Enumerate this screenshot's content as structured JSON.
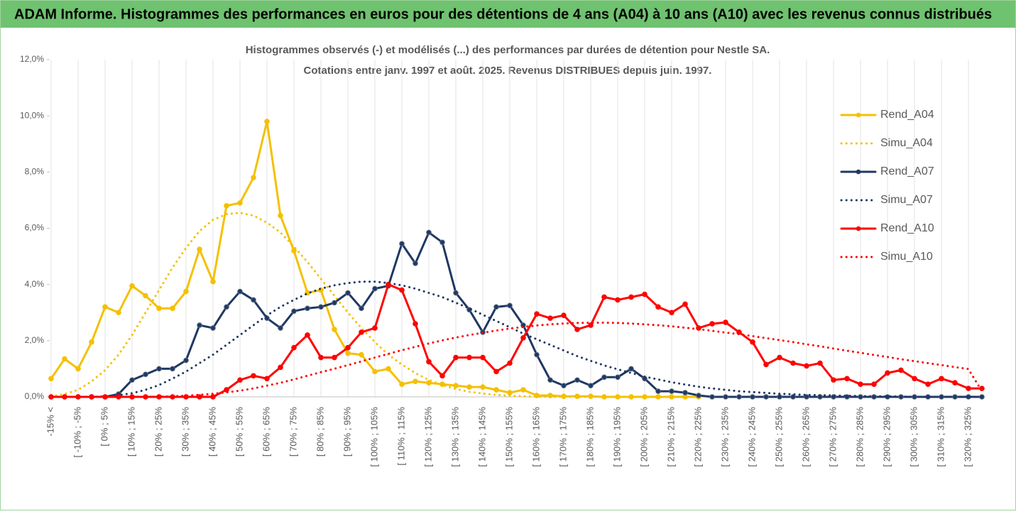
{
  "page_title": "ADAM Informe. Histogrammes des performances en euros pour des détentions de 4 ans (A04) à 10 ans (A10) avec les revenus connus distribués",
  "chart_data": {
    "type": "line",
    "title": "Histogrammes observés (-) et modélisés (...) des performances par durées de détention pour Nestle SA.",
    "subtitle": "Cotations entre janv. 1997 et août. 2025. Revenus DISTRIBUES depuis juin. 1997.",
    "categories": [
      "-15% <",
      null,
      "[ -10% ; -5%",
      null,
      "[ 0% ; 5%",
      null,
      "[ 10% ; 15%",
      null,
      "[ 20% ; 25%",
      null,
      "[ 30% ; 35%",
      null,
      "[ 40% ; 45%",
      null,
      "[ 50% ; 55%",
      null,
      "[ 60% ; 65%",
      null,
      "[ 70% ; 75%",
      null,
      "[ 80% ; 85%",
      null,
      "[ 90% ; 95%",
      null,
      "[ 100% ; 105%",
      null,
      "[ 110% ; 115%",
      null,
      "[ 120% ; 125%",
      null,
      "[ 130% ; 135%",
      null,
      "[ 140% ; 145%",
      null,
      "[ 150% ; 155%",
      null,
      "[ 160% ; 165%",
      null,
      "[ 170% ; 175%",
      null,
      "[ 180% ; 185%",
      null,
      "[ 190% ; 195%",
      null,
      "[ 200% ; 205%",
      null,
      "[ 210% ; 215%",
      null,
      "[ 220% ; 225%",
      null,
      "[ 230% ; 235%",
      null,
      "[ 240% ; 245%",
      null,
      "[ 250% ; 255%",
      null,
      "[ 260% ; 265%",
      null,
      "[ 270% ; 275%",
      null,
      "[ 280% ; 285%",
      null,
      "[ 290% ; 295%",
      null,
      "[ 300% ; 305%",
      null,
      "[ 310% ; 315%",
      null,
      "[ 320% ; 325%",
      null
    ],
    "series": [
      {
        "name": "Rend_A04",
        "color": "#f5c000",
        "style": "solid",
        "values": [
          0.65,
          1.35,
          1.0,
          1.95,
          3.2,
          3.0,
          3.95,
          3.6,
          3.15,
          3.15,
          3.75,
          5.25,
          4.1,
          6.8,
          6.9,
          7.8,
          9.8,
          6.45,
          5.2,
          3.7,
          3.8,
          2.4,
          1.55,
          1.5,
          0.9,
          1.0,
          0.45,
          0.55,
          0.5,
          0.45,
          0.4,
          0.35,
          0.35,
          0.25,
          0.15,
          0.25,
          0.05,
          0.05,
          0.02,
          0.02,
          0.02,
          0,
          0,
          0,
          0,
          0,
          0,
          0,
          0,
          null,
          null,
          null,
          null,
          null,
          null,
          null,
          null,
          null,
          null,
          null,
          null,
          null,
          null,
          null,
          null,
          null,
          null,
          null,
          null,
          null
        ]
      },
      {
        "name": "Simu_A04",
        "color": "#f5c000",
        "style": "dotted",
        "values": [
          0.02,
          0.1,
          0.25,
          0.55,
          0.95,
          1.5,
          2.2,
          3.0,
          3.8,
          4.6,
          5.3,
          5.9,
          6.3,
          6.5,
          6.55,
          6.45,
          6.2,
          5.85,
          5.35,
          4.8,
          4.2,
          3.6,
          3.0,
          2.45,
          1.95,
          1.5,
          1.15,
          0.85,
          0.6,
          0.42,
          0.28,
          0.18,
          0.12,
          0.07,
          0.04,
          0.02,
          0.01,
          0,
          0,
          0,
          0,
          0,
          0,
          0,
          0,
          0,
          0,
          0,
          0,
          null,
          null,
          null,
          null,
          null,
          null,
          null,
          null,
          null,
          null,
          null,
          null,
          null,
          null,
          null,
          null,
          null,
          null,
          null,
          null,
          null
        ]
      },
      {
        "name": "Rend_A07",
        "color": "#1f3864",
        "style": "solid",
        "values": [
          0,
          0,
          0,
          0,
          0,
          0.1,
          0.6,
          0.8,
          1.0,
          1.0,
          1.3,
          2.55,
          2.45,
          3.2,
          3.75,
          3.45,
          2.8,
          2.45,
          3.05,
          3.15,
          3.2,
          3.35,
          3.7,
          3.15,
          3.85,
          3.95,
          5.45,
          4.75,
          5.85,
          5.5,
          3.7,
          3.1,
          2.3,
          3.2,
          3.25,
          2.55,
          1.5,
          0.6,
          0.4,
          0.6,
          0.4,
          0.7,
          0.7,
          1.0,
          0.65,
          0.2,
          0.2,
          0.15,
          0.05,
          0,
          0,
          0,
          0,
          0,
          0,
          0,
          0,
          0,
          0,
          0,
          0,
          0,
          0,
          0,
          0,
          0,
          0,
          0,
          0,
          0
        ]
      },
      {
        "name": "Simu_A07",
        "color": "#1f3864",
        "style": "dotted",
        "values": [
          0,
          0,
          0,
          0,
          0.02,
          0.06,
          0.13,
          0.25,
          0.42,
          0.65,
          0.9,
          1.2,
          1.5,
          1.85,
          2.2,
          2.55,
          2.9,
          3.2,
          3.45,
          3.68,
          3.85,
          3.97,
          4.05,
          4.1,
          4.1,
          4.05,
          3.97,
          3.85,
          3.7,
          3.55,
          3.35,
          3.15,
          2.92,
          2.7,
          2.48,
          2.25,
          2.05,
          1.85,
          1.65,
          1.45,
          1.28,
          1.12,
          0.98,
          0.85,
          0.72,
          0.62,
          0.52,
          0.44,
          0.36,
          0.3,
          0.25,
          0.2,
          0.17,
          0.14,
          0.11,
          0.09,
          0.07,
          0.06,
          0.05,
          0.04,
          0.03,
          0.02,
          0.02,
          0.01,
          0,
          0,
          0,
          0,
          0,
          0
        ]
      },
      {
        "name": "Rend_A10",
        "color": "#ff0000",
        "style": "solid",
        "values": [
          0,
          0,
          0,
          0,
          0,
          0,
          0,
          0,
          0,
          0,
          0,
          0,
          0,
          0.25,
          0.6,
          0.75,
          0.65,
          1.05,
          1.75,
          2.2,
          1.4,
          1.4,
          1.75,
          2.3,
          2.45,
          4.0,
          3.8,
          2.6,
          1.25,
          0.75,
          1.4,
          1.4,
          1.4,
          0.9,
          1.2,
          2.1,
          2.95,
          2.8,
          2.9,
          2.4,
          2.55,
          3.55,
          3.45,
          3.55,
          3.65,
          3.2,
          3.0,
          3.3,
          2.45,
          2.6,
          2.65,
          2.3,
          1.95,
          1.15,
          1.4,
          1.2,
          1.1,
          1.2,
          0.6,
          0.65,
          0.45,
          0.45,
          0.85,
          0.95,
          0.65,
          0.45,
          0.65,
          0.5,
          0.3,
          0.3
        ]
      },
      {
        "name": "Simu_A10",
        "color": "#ff0000",
        "style": "dotted",
        "values": [
          0,
          0,
          0,
          0,
          0,
          0,
          0,
          0,
          0.01,
          0.02,
          0.04,
          0.07,
          0.11,
          0.16,
          0.22,
          0.3,
          0.4,
          0.5,
          0.62,
          0.75,
          0.88,
          1.0,
          1.13,
          1.26,
          1.4,
          1.53,
          1.66,
          1.78,
          1.9,
          2.01,
          2.11,
          2.2,
          2.28,
          2.36,
          2.43,
          2.49,
          2.54,
          2.58,
          2.61,
          2.63,
          2.64,
          2.64,
          2.63,
          2.61,
          2.58,
          2.55,
          2.51,
          2.46,
          2.41,
          2.35,
          2.29,
          2.23,
          2.16,
          2.09,
          2.02,
          1.95,
          1.87,
          1.8,
          1.72,
          1.64,
          1.57,
          1.49,
          1.42,
          1.34,
          1.27,
          1.2,
          1.13,
          1.06,
          0.99,
          0.2
        ]
      }
    ],
    "ylim": [
      0,
      12
    ],
    "yticks": [
      {
        "value": 0,
        "label": "0,0%"
      },
      {
        "value": 2,
        "label": "2,0%"
      },
      {
        "value": 4,
        "label": "4,0%"
      },
      {
        "value": 6,
        "label": "6,0%"
      },
      {
        "value": 8,
        "label": "8,0%"
      },
      {
        "value": 10,
        "label": "10,0%"
      },
      {
        "value": 12,
        "label": "12,0%"
      }
    ],
    "grid": true,
    "legend": "right"
  }
}
